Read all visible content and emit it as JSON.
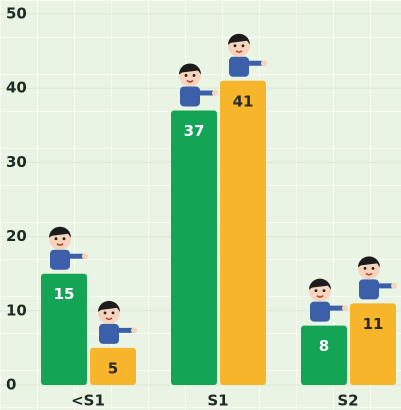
{
  "chart_data": {
    "type": "bar",
    "categories": [
      "<S1",
      "S1",
      "S2"
    ],
    "series": [
      {
        "color": "#14a455",
        "values": [
          15,
          37,
          8
        ]
      },
      {
        "color": "#f6b52b",
        "values": [
          5,
          41,
          11
        ]
      }
    ],
    "ylim": [
      0,
      50
    ],
    "yticks": [
      0,
      10,
      20,
      30,
      40,
      50
    ],
    "grid": true
  }
}
